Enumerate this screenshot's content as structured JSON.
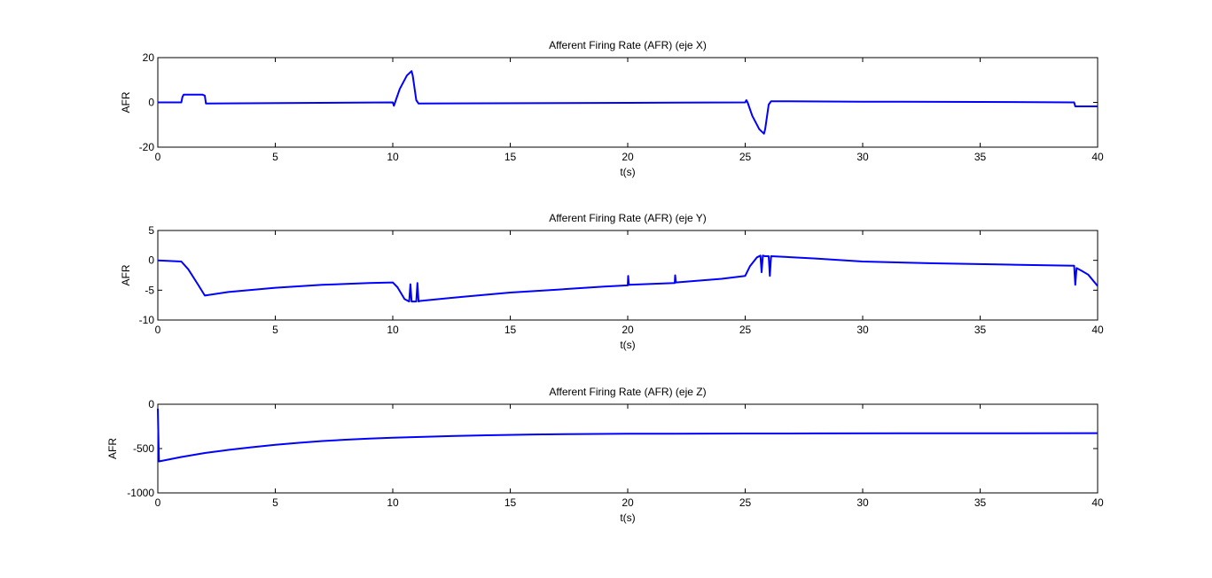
{
  "chart_data": [
    {
      "type": "line",
      "title": "Afferent Firing Rate (AFR) (eje X)",
      "xlabel": "t(s)",
      "ylabel": "AFR",
      "xlim": [
        0,
        40
      ],
      "ylim": [
        -20,
        20
      ],
      "xticks": [
        0,
        5,
        10,
        15,
        20,
        25,
        30,
        35,
        40
      ],
      "yticks": [
        -20,
        0,
        20
      ],
      "grid": false,
      "color": "#0000ff",
      "series": [
        {
          "x": [
            0,
            1,
            1.05,
            1.1,
            1.9,
            2.0,
            2.05,
            10,
            10.05,
            10.1,
            10.3,
            10.6,
            10.8,
            10.85,
            11.0,
            11.1,
            20,
            25,
            25.05,
            25.1,
            25.3,
            25.6,
            25.8,
            25.85,
            26.0,
            26.1,
            30,
            35,
            39,
            39.05,
            40
          ],
          "y": [
            0,
            0,
            2.5,
            3.5,
            3.5,
            3.0,
            -0.5,
            0,
            -1.5,
            0,
            6,
            12,
            14,
            12,
            1,
            -0.5,
            -0.2,
            0,
            1,
            0,
            -6,
            -12,
            -14,
            -12,
            -1,
            0.5,
            0.3,
            0.2,
            0,
            -1.8,
            -1.8
          ]
        }
      ]
    },
    {
      "type": "line",
      "title": "Afferent Firing Rate (AFR) (eje Y)",
      "xlabel": "t(s)",
      "ylabel": "AFR",
      "xlim": [
        0,
        40
      ],
      "ylim": [
        -10,
        5
      ],
      "xticks": [
        0,
        5,
        10,
        15,
        20,
        25,
        30,
        35,
        40
      ],
      "yticks": [
        -10,
        -5,
        0,
        5
      ],
      "grid": false,
      "color": "#0000ff",
      "series": [
        {
          "x": [
            0,
            1,
            1.3,
            1.7,
            2.0,
            3,
            5,
            7,
            9,
            10,
            10.2,
            10.5,
            10.7,
            10.75,
            10.8,
            11,
            11.05,
            11.1,
            11.15,
            13,
            15,
            17,
            19,
            20,
            20.02,
            20.05,
            22,
            22.02,
            22.05,
            24,
            25,
            25.2,
            25.5,
            25.65,
            25.7,
            25.75,
            25.85,
            26.0,
            26.05,
            26.1,
            28,
            30,
            33,
            36,
            39,
            39.05,
            39.1,
            39.3,
            39.6,
            40
          ],
          "y": [
            0,
            -0.2,
            -1.5,
            -4,
            -5.9,
            -5.3,
            -4.6,
            -4.1,
            -3.8,
            -3.7,
            -4.5,
            -6.5,
            -6.9,
            -4,
            -6.9,
            -6.9,
            -3.8,
            -6.9,
            -6.8,
            -6.1,
            -5.4,
            -4.9,
            -4.4,
            -4.2,
            -2.6,
            -4.1,
            -3.8,
            -2.5,
            -3.7,
            -3.1,
            -2.6,
            -1,
            0.5,
            0.8,
            -2,
            0.8,
            0.7,
            0.7,
            -2.6,
            0.7,
            0.3,
            -0.2,
            -0.5,
            -0.7,
            -0.9,
            -4.1,
            -1.3,
            -1.7,
            -2.4,
            -4.3
          ]
        }
      ]
    },
    {
      "type": "line",
      "title": "Afferent Firing Rate (AFR) (eje Z)",
      "xlabel": "t(s)",
      "ylabel": "AFR",
      "xlim": [
        0,
        40
      ],
      "ylim": [
        -1000,
        0
      ],
      "xticks": [
        0,
        5,
        10,
        15,
        20,
        25,
        30,
        35,
        40
      ],
      "yticks": [
        -1000,
        -500,
        0
      ],
      "grid": false,
      "color": "#0000ff",
      "series": [
        {
          "x": [
            0,
            0.02,
            0.05,
            1,
            2,
            3,
            4,
            5,
            6,
            7,
            8,
            9,
            10,
            12,
            14,
            16,
            18,
            20,
            22,
            25,
            28,
            32,
            36,
            40
          ],
          "y": [
            -50,
            -300,
            -645,
            -595,
            -550,
            -515,
            -485,
            -458,
            -435,
            -415,
            -400,
            -388,
            -378,
            -362,
            -350,
            -341,
            -336,
            -333,
            -332,
            -330,
            -329,
            -328,
            -327,
            -326
          ]
        }
      ]
    }
  ]
}
